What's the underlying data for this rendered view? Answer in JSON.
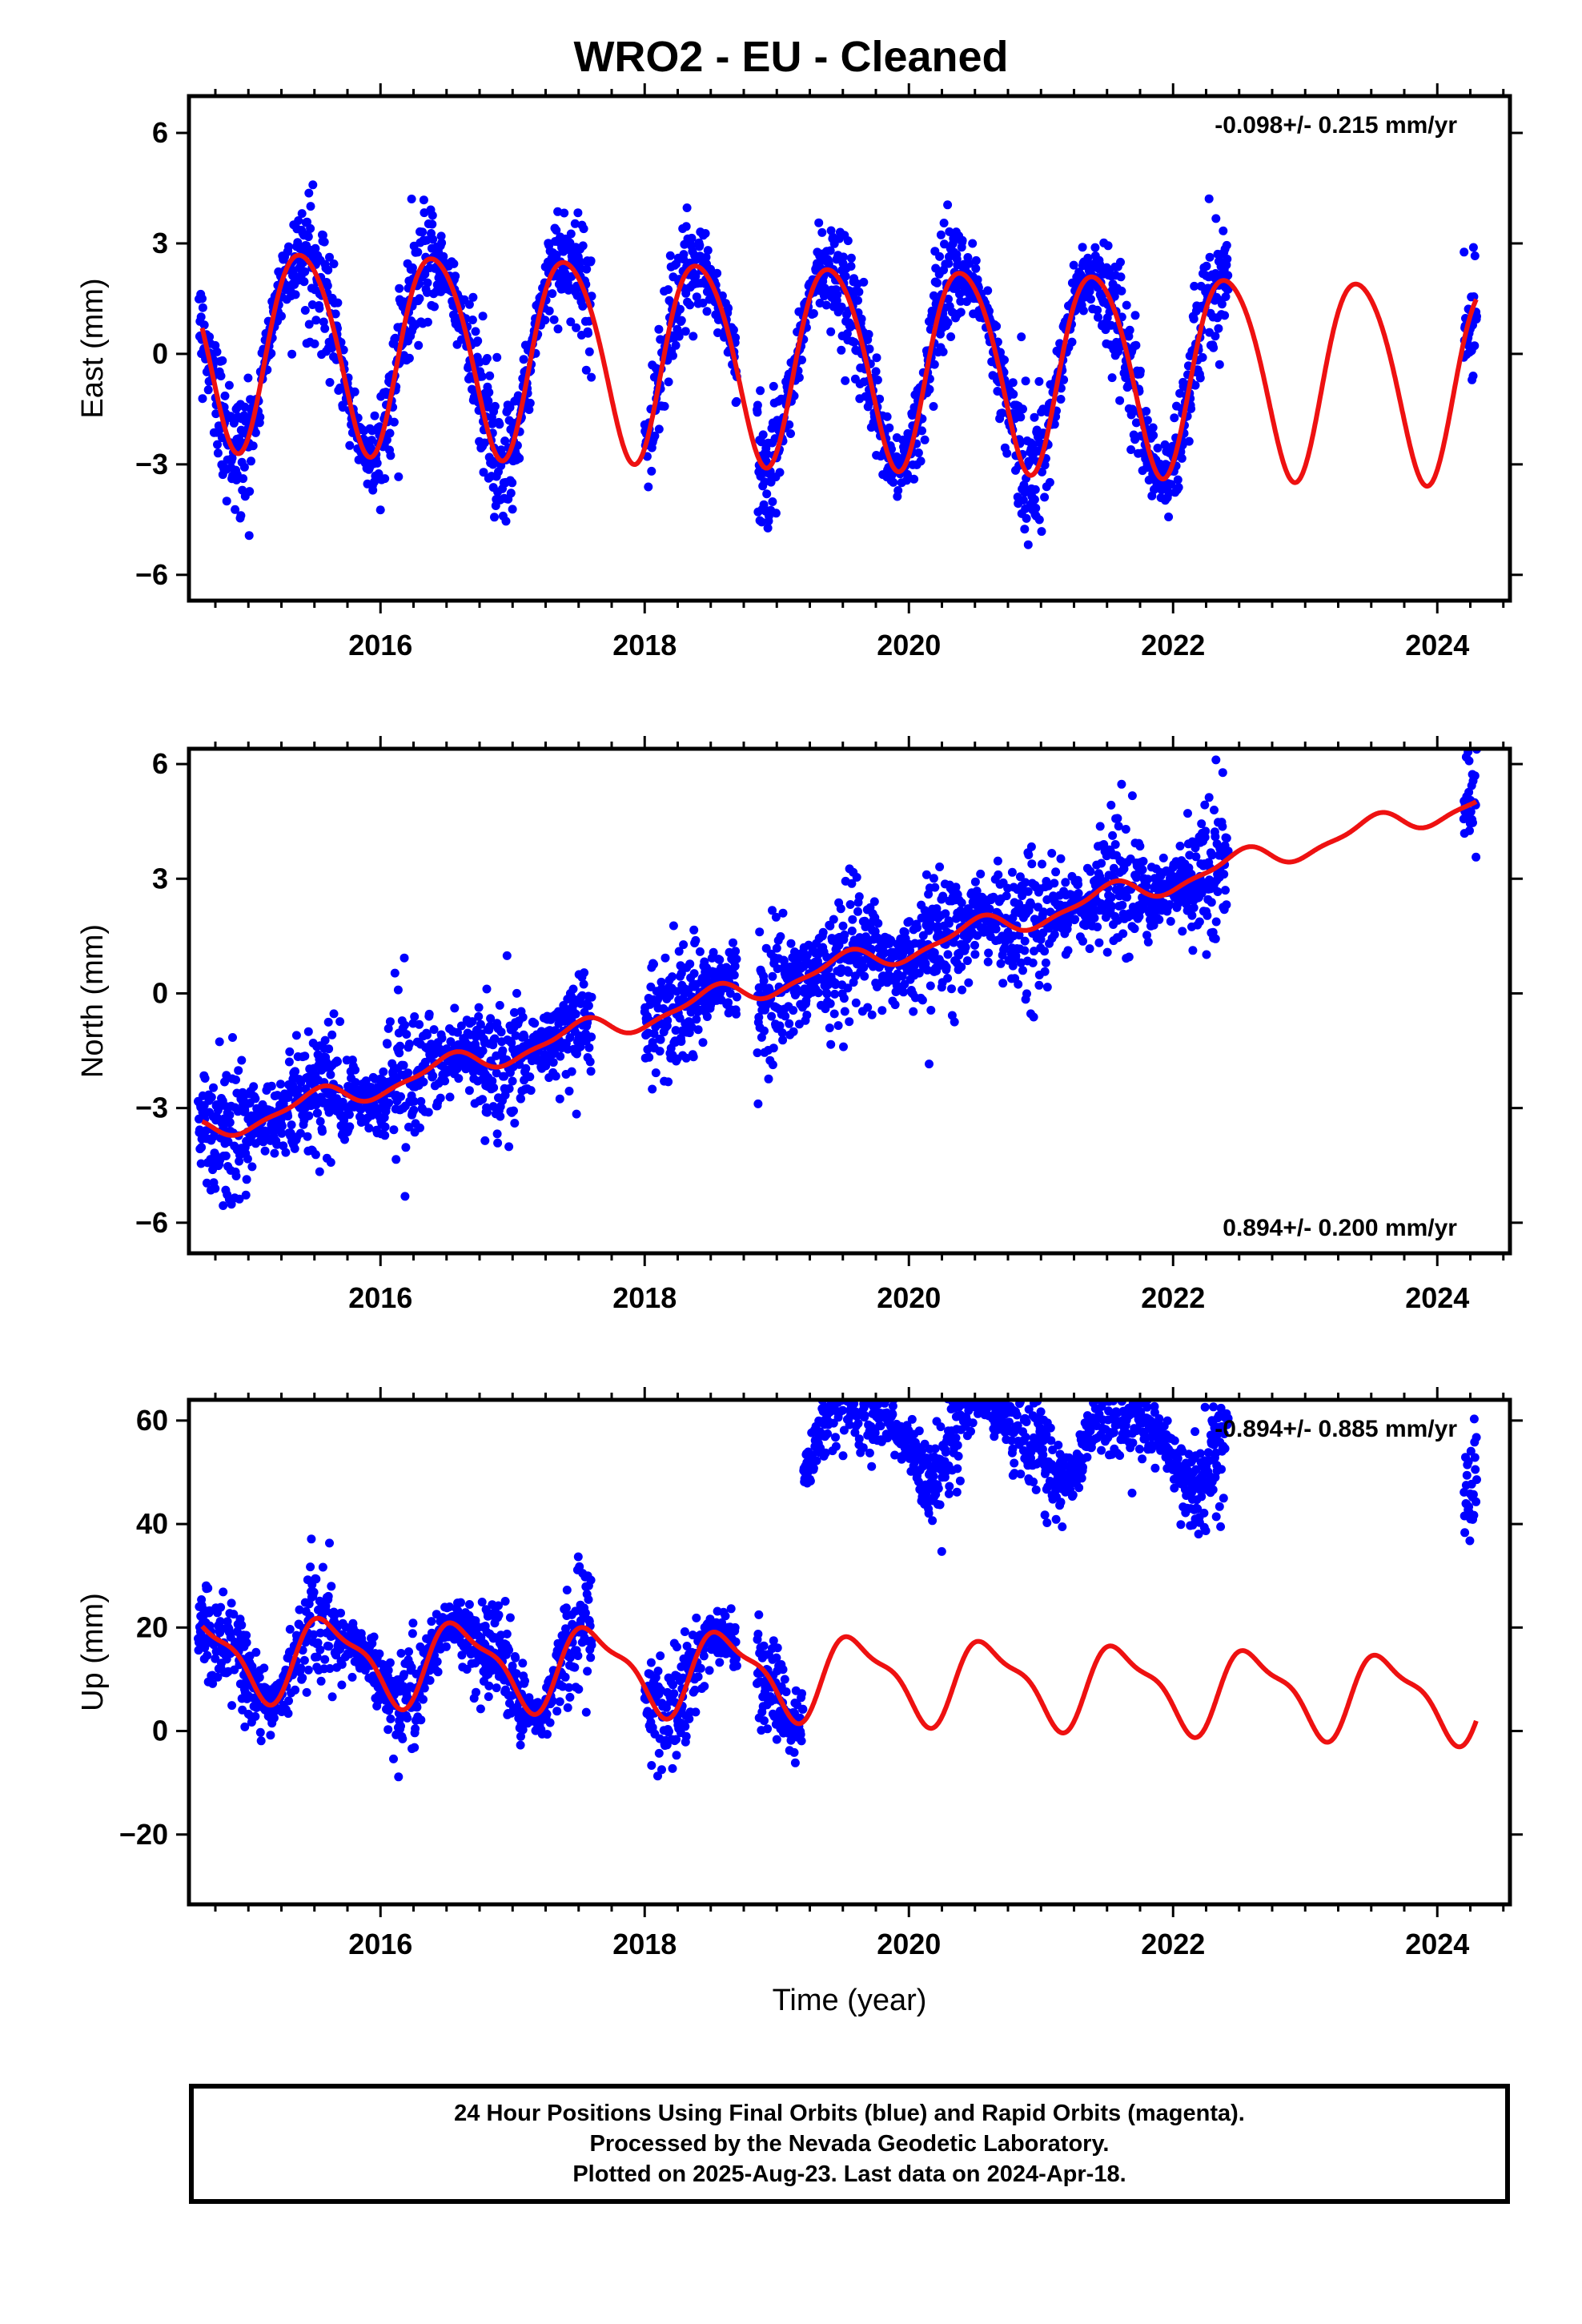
{
  "title": "WRO2  - EU - Cleaned",
  "colors": {
    "final_orbits": "#0000ff",
    "model": "#ee1111",
    "frame": "#000000"
  },
  "xlabel": "Time (year)",
  "caption": [
    "24 Hour Positions Using Final Orbits (blue) and Rapid Orbits (magenta).",
    "Processed by the Nevada Geodetic Laboratory.",
    "Plotted on 2025-Aug-23. Last data on 2024-Apr-18."
  ],
  "chart_data": [
    {
      "type": "scatter",
      "panel": "east",
      "ylabel": "East (mm)",
      "rate_label": "-0.098+/- 0.215 mm/yr",
      "xlim": [
        2014.55,
        2024.55
      ],
      "ylim": [
        -6.7,
        7.0
      ],
      "xticks": [
        2016,
        2018,
        2020,
        2022,
        2024
      ],
      "yticks": [
        -6,
        -3,
        0,
        3,
        6
      ],
      "model": {
        "rate": -0.098,
        "offset": 0.3,
        "annual_amp": 2.7,
        "annual_peak": 0.41,
        "semiannual_amp": 0.3,
        "semiannual_peak": 0.2
      },
      "data_segments": [
        [
          2014.62,
          2017.6
        ],
        [
          2018.0,
          2018.7
        ],
        [
          2018.85,
          2022.42
        ],
        [
          2024.2,
          2024.3
        ]
      ],
      "scatter_noise": 0.95,
      "series": [
        {
          "name": "Final Orbits (blue)"
        }
      ]
    },
    {
      "type": "scatter",
      "panel": "north",
      "ylabel": "North (mm)",
      "rate_label": "0.894+/- 0.200 mm/yr",
      "xlim": [
        2014.55,
        2024.55
      ],
      "ylim": [
        -6.8,
        6.4
      ],
      "xticks": [
        2016,
        2018,
        2020,
        2022,
        2024
      ],
      "yticks": [
        -6,
        -3,
        0,
        3,
        6
      ],
      "model": {
        "rate": 0.894,
        "offset": -3.7,
        "annual_amp": 0.3,
        "annual_peak": 0.5,
        "semiannual_amp": 0.1,
        "semiannual_peak": 0.1
      },
      "data_segments": [
        [
          2014.62,
          2017.6
        ],
        [
          2018.0,
          2018.7
        ],
        [
          2018.85,
          2022.42
        ],
        [
          2024.2,
          2024.3
        ]
      ],
      "scatter_noise": 1.0,
      "series": [
        {
          "name": "Final Orbits (blue)"
        }
      ]
    },
    {
      "type": "scatter",
      "panel": "up",
      "ylabel": "Up (mm)",
      "rate_label": "-0.894+/- 0.885 mm/yr",
      "xlim": [
        2014.55,
        2024.55
      ],
      "ylim": [
        -33.5,
        64.0
      ],
      "xticks": [
        2016,
        2018,
        2020,
        2022,
        2024
      ],
      "yticks": [
        -20,
        0,
        20,
        40,
        60
      ],
      "model": {
        "rate": -0.894,
        "offset": 15.0,
        "annual_amp": 7.5,
        "annual_peak": 0.62,
        "semiannual_amp": 2.5,
        "semiannual_peak": 0.45
      },
      "step": {
        "epoch": 2019.2,
        "size": 48.0
      },
      "data_segments": [
        [
          2014.62,
          2017.6
        ],
        [
          2018.0,
          2018.7
        ],
        [
          2018.85,
          2022.42
        ],
        [
          2024.2,
          2024.3
        ]
      ],
      "scatter_noise": 5.5,
      "series": [
        {
          "name": "Final Orbits (blue)"
        }
      ]
    }
  ]
}
